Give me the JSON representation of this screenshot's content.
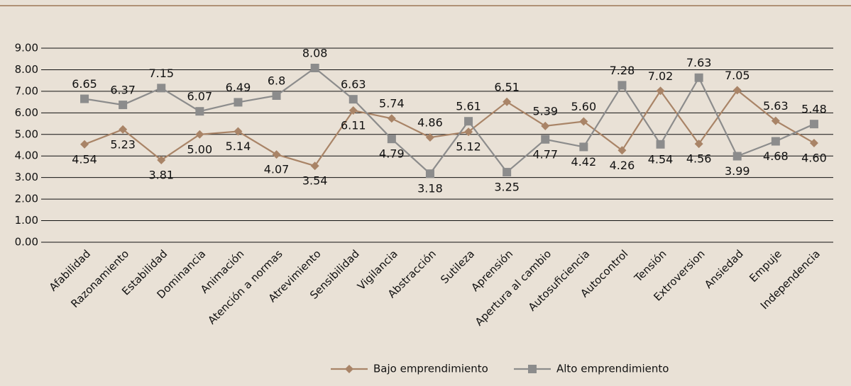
{
  "chart_data": {
    "type": "line",
    "categories": [
      "Afabilidad",
      "Razonamiento",
      "Estabilidad",
      "Dominancia",
      "Animación",
      "Atención a normas",
      "Atrevimiento",
      "Sensibilidad",
      "Vigilancia",
      "Abstracción",
      "Sutileza",
      "Aprensión",
      "Apertura al cambio",
      "Autosuficiencia",
      "Autocontrol",
      "Tensión",
      "Extroversion",
      "Ansiedad",
      "Empuje",
      "Independencia"
    ],
    "series": [
      {
        "name": "Bajo emprendimiento",
        "color": "#a98467",
        "marker": "diamond",
        "values": [
          4.54,
          5.23,
          3.81,
          5.0,
          5.14,
          4.07,
          3.54,
          6.11,
          5.74,
          4.86,
          5.12,
          6.51,
          5.39,
          5.6,
          4.26,
          7.02,
          4.56,
          7.05,
          5.63,
          4.6
        ],
        "value_labels": [
          "4.54",
          "5.23",
          "3.81",
          "5.00",
          "5.14",
          "4.07",
          "3.54",
          "6.11",
          "5.74",
          "4.86",
          "5.12",
          "6.51",
          "5.39",
          "5.60",
          "4.26",
          "7.02",
          "4.56",
          "7.05",
          "5.63",
          "4.60"
        ]
      },
      {
        "name": "Alto emprendimiento",
        "color": "#8c8c8c",
        "marker": "square",
        "values": [
          6.65,
          6.37,
          7.15,
          6.07,
          6.49,
          6.8,
          8.08,
          6.63,
          4.79,
          3.18,
          5.61,
          3.25,
          4.77,
          4.42,
          7.28,
          4.54,
          7.63,
          3.99,
          4.68,
          5.48
        ],
        "value_labels": [
          "6.65",
          "6.37",
          "7.15",
          "6.07",
          "6.49",
          "6.8",
          "8.08",
          "6.63",
          "4.79",
          "3.18",
          "5.61",
          "3.25",
          "4.77",
          "4.42",
          "7.28",
          "4.54",
          "7.63",
          "3.99",
          "4.68",
          "5.48"
        ]
      }
    ],
    "ylim": [
      0,
      9
    ],
    "yticks": [
      {
        "value": 0,
        "label": "0.00"
      },
      {
        "value": 1,
        "label": "1.00"
      },
      {
        "value": 2,
        "label": "2.00"
      },
      {
        "value": 3,
        "label": "3.00"
      },
      {
        "value": 4,
        "label": "4.00"
      },
      {
        "value": 5,
        "label": "5.00"
      },
      {
        "value": 6,
        "label": "6.00"
      },
      {
        "value": 7,
        "label": "7.00"
      },
      {
        "value": 8,
        "label": "8.00"
      },
      {
        "value": 9,
        "label": "9.00"
      }
    ],
    "grid": true,
    "legend": "bottom"
  }
}
